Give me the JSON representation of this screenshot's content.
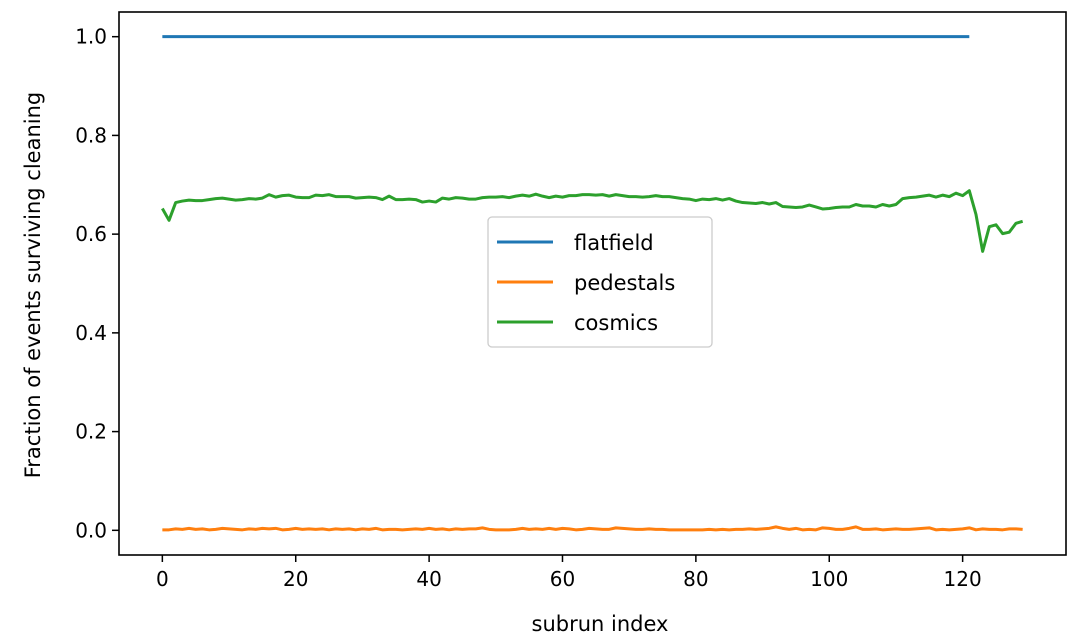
{
  "chart_data": {
    "type": "line",
    "title": "",
    "xlabel": "subrun index",
    "ylabel": "Fraction of events surviving cleaning",
    "xlim": [
      -6.5,
      135.5
    ],
    "ylim": [
      -0.05,
      1.05
    ],
    "x_ticks": [
      0,
      20,
      40,
      60,
      80,
      100,
      120
    ],
    "x_tick_labels": [
      "0",
      "20",
      "40",
      "60",
      "80",
      "100",
      "120"
    ],
    "y_ticks": [
      0.0,
      0.2,
      0.4,
      0.6,
      0.8,
      1.0
    ],
    "y_tick_labels": [
      "0.0",
      "0.2",
      "0.4",
      "0.6",
      "0.8",
      "1.0"
    ],
    "grid": false,
    "legend_position": "center",
    "series": [
      {
        "name": "flatfield",
        "color": "#1f77b4",
        "x": [
          0,
          121
        ],
        "y": [
          1.0,
          1.0
        ]
      },
      {
        "name": "pedestals",
        "color": "#ff7f0e",
        "x": [
          0,
          1,
          2,
          3,
          4,
          5,
          6,
          7,
          8,
          9,
          10,
          11,
          12,
          13,
          14,
          15,
          16,
          17,
          18,
          19,
          20,
          21,
          22,
          23,
          24,
          25,
          26,
          27,
          28,
          29,
          30,
          31,
          32,
          33,
          34,
          35,
          36,
          37,
          38,
          39,
          40,
          41,
          42,
          43,
          44,
          45,
          46,
          47,
          48,
          49,
          50,
          51,
          52,
          53,
          54,
          55,
          56,
          57,
          58,
          59,
          60,
          61,
          62,
          63,
          64,
          65,
          66,
          67,
          68,
          69,
          70,
          71,
          72,
          73,
          74,
          75,
          76,
          77,
          78,
          79,
          80,
          81,
          82,
          83,
          84,
          85,
          86,
          87,
          88,
          89,
          90,
          91,
          92,
          93,
          94,
          95,
          96,
          97,
          98,
          99,
          100,
          101,
          102,
          103,
          104,
          105,
          106,
          107,
          108,
          109,
          110,
          111,
          112,
          113,
          114,
          115,
          116,
          117,
          118,
          119,
          120,
          121,
          122,
          123,
          124,
          125,
          126,
          127,
          128,
          129
        ],
        "y": [
          0.001,
          0.001,
          0.003,
          0.002,
          0.004,
          0.002,
          0.003,
          0.001,
          0.002,
          0.004,
          0.003,
          0.002,
          0.001,
          0.003,
          0.002,
          0.004,
          0.003,
          0.004,
          0.001,
          0.002,
          0.004,
          0.002,
          0.003,
          0.002,
          0.003,
          0.001,
          0.003,
          0.002,
          0.003,
          0.001,
          0.003,
          0.002,
          0.004,
          0.001,
          0.002,
          0.002,
          0.001,
          0.002,
          0.003,
          0.002,
          0.004,
          0.002,
          0.003,
          0.001,
          0.003,
          0.002,
          0.003,
          0.003,
          0.005,
          0.002,
          0.001,
          0.001,
          0.001,
          0.002,
          0.004,
          0.002,
          0.003,
          0.002,
          0.004,
          0.002,
          0.004,
          0.003,
          0.001,
          0.002,
          0.004,
          0.003,
          0.002,
          0.002,
          0.005,
          0.004,
          0.003,
          0.002,
          0.002,
          0.003,
          0.002,
          0.002,
          0.001,
          0.001,
          0.001,
          0.001,
          0.001,
          0.001,
          0.002,
          0.001,
          0.002,
          0.001,
          0.002,
          0.002,
          0.003,
          0.002,
          0.003,
          0.004,
          0.007,
          0.004,
          0.002,
          0.004,
          0.001,
          0.002,
          0.001,
          0.005,
          0.004,
          0.002,
          0.002,
          0.004,
          0.007,
          0.002,
          0.002,
          0.003,
          0.001,
          0.002,
          0.003,
          0.002,
          0.002,
          0.003,
          0.004,
          0.005,
          0.001,
          0.002,
          0.001,
          0.002,
          0.003,
          0.005,
          0.001,
          0.003,
          0.002,
          0.002,
          0.001,
          0.003,
          0.003,
          0.002
        ]
      },
      {
        "name": "cosmics",
        "color": "#2ca02c",
        "x": [
          0,
          1,
          2,
          3,
          4,
          5,
          6,
          7,
          8,
          9,
          10,
          11,
          12,
          13,
          14,
          15,
          16,
          17,
          18,
          19,
          20,
          21,
          22,
          23,
          24,
          25,
          26,
          27,
          28,
          29,
          30,
          31,
          32,
          33,
          34,
          35,
          36,
          37,
          38,
          39,
          40,
          41,
          42,
          43,
          44,
          45,
          46,
          47,
          48,
          49,
          50,
          51,
          52,
          53,
          54,
          55,
          56,
          57,
          58,
          59,
          60,
          61,
          62,
          63,
          64,
          65,
          66,
          67,
          68,
          69,
          70,
          71,
          72,
          73,
          74,
          75,
          76,
          77,
          78,
          79,
          80,
          81,
          82,
          83,
          84,
          85,
          86,
          87,
          88,
          89,
          90,
          91,
          92,
          93,
          94,
          95,
          96,
          97,
          98,
          99,
          100,
          101,
          102,
          103,
          104,
          105,
          106,
          107,
          108,
          109,
          110,
          111,
          112,
          113,
          114,
          115,
          116,
          117,
          118,
          119,
          120,
          121,
          122,
          123,
          124,
          125,
          126,
          127,
          128,
          129
        ],
        "y": [
          0.652,
          0.628,
          0.664,
          0.667,
          0.669,
          0.668,
          0.668,
          0.67,
          0.672,
          0.673,
          0.671,
          0.669,
          0.67,
          0.672,
          0.671,
          0.673,
          0.68,
          0.675,
          0.678,
          0.679,
          0.675,
          0.674,
          0.674,
          0.679,
          0.678,
          0.68,
          0.676,
          0.676,
          0.676,
          0.673,
          0.674,
          0.675,
          0.674,
          0.67,
          0.677,
          0.67,
          0.67,
          0.671,
          0.67,
          0.665,
          0.667,
          0.665,
          0.673,
          0.671,
          0.674,
          0.673,
          0.671,
          0.671,
          0.674,
          0.675,
          0.675,
          0.676,
          0.674,
          0.677,
          0.679,
          0.677,
          0.681,
          0.677,
          0.674,
          0.677,
          0.675,
          0.678,
          0.678,
          0.68,
          0.68,
          0.679,
          0.68,
          0.677,
          0.68,
          0.678,
          0.676,
          0.676,
          0.675,
          0.676,
          0.678,
          0.676,
          0.676,
          0.674,
          0.672,
          0.671,
          0.668,
          0.671,
          0.67,
          0.672,
          0.669,
          0.672,
          0.667,
          0.664,
          0.663,
          0.662,
          0.664,
          0.661,
          0.664,
          0.656,
          0.655,
          0.654,
          0.655,
          0.659,
          0.655,
          0.651,
          0.652,
          0.654,
          0.655,
          0.655,
          0.66,
          0.657,
          0.657,
          0.655,
          0.66,
          0.657,
          0.66,
          0.672,
          0.674,
          0.675,
          0.677,
          0.679,
          0.675,
          0.679,
          0.676,
          0.683,
          0.678,
          0.688,
          0.64,
          0.565,
          0.615,
          0.619,
          0.601,
          0.604,
          0.622,
          0.626
        ]
      }
    ]
  }
}
